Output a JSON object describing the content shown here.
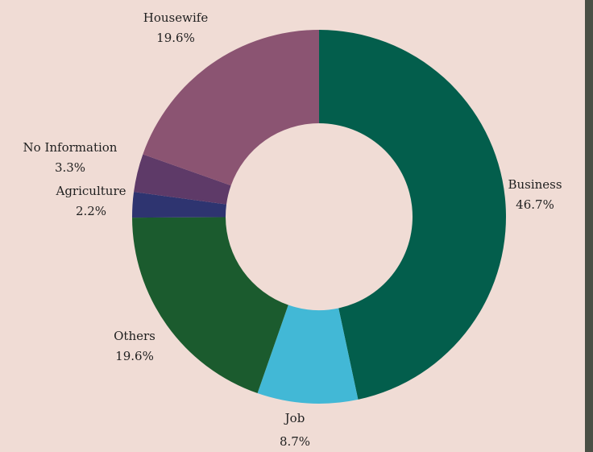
{
  "chart_data": {
    "type": "pie",
    "categories": [
      "Business",
      "Job",
      "Others",
      "Agriculture",
      "No Information",
      "Housewife"
    ],
    "values": [
      46.7,
      8.7,
      19.6,
      2.2,
      3.3,
      19.6
    ],
    "value_labels": [
      "46.7%",
      "8.7%",
      "19.6%",
      "2.2%",
      "3.3%",
      "19.6%"
    ],
    "colors": [
      "#035e4c",
      "#42b8d6",
      "#1b5b2e",
      "#2e3470",
      "#5e3a68",
      "#8b5472"
    ],
    "donut": true
  }
}
